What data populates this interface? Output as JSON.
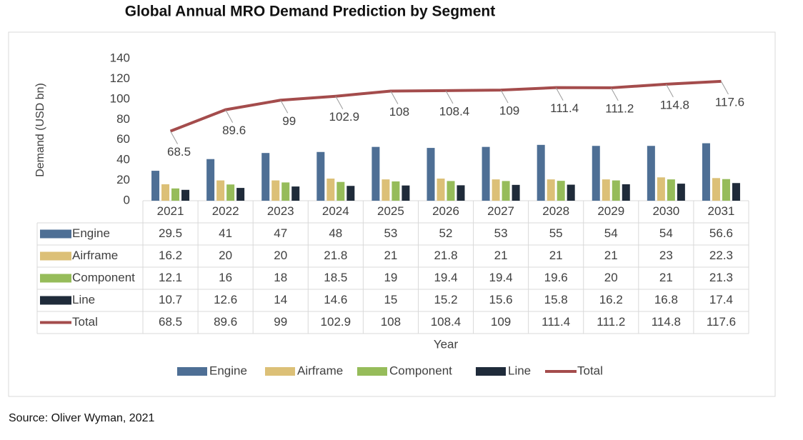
{
  "chart_data": {
    "type": "bar",
    "title": "Global Annual MRO Demand Prediction by Segment",
    "y_label": "Demand (USD bn)",
    "x_label": "Year",
    "source": "Source: Oliver Wyman, 2021",
    "categories": [
      "2021",
      "2022",
      "2023",
      "2024",
      "2025",
      "2026",
      "2027",
      "2028",
      "2029",
      "2030",
      "2031"
    ],
    "series": [
      {
        "name": "Engine",
        "type": "bar",
        "color": "#4e6f95",
        "values": [
          29.5,
          41,
          47,
          48,
          53,
          52,
          53,
          55,
          54,
          54,
          56.6
        ]
      },
      {
        "name": "Airframe",
        "type": "bar",
        "color": "#dcc077",
        "values": [
          16.2,
          20,
          20,
          21.8,
          21,
          21.8,
          21,
          21,
          21,
          23,
          22.3
        ]
      },
      {
        "name": "Component",
        "type": "bar",
        "color": "#96bc5a",
        "values": [
          12.1,
          16,
          18,
          18.5,
          19,
          19.4,
          19.4,
          19.6,
          20,
          21,
          21.3
        ]
      },
      {
        "name": "Line",
        "type": "bar",
        "color": "#1f2b3a",
        "values": [
          10.7,
          12.6,
          14,
          14.6,
          15,
          15.2,
          15.6,
          15.8,
          16.2,
          16.8,
          17.4
        ]
      },
      {
        "name": "Total",
        "type": "line",
        "color": "#a44c4c",
        "values": [
          68.5,
          89.6,
          99,
          102.9,
          108,
          108.4,
          109,
          111.4,
          111.2,
          114.8,
          117.6
        ]
      }
    ],
    "ylim": [
      0,
      140
    ],
    "yticks": [
      0,
      20,
      40,
      60,
      80,
      100,
      120,
      140
    ],
    "grid": false,
    "legend": "bottom"
  }
}
